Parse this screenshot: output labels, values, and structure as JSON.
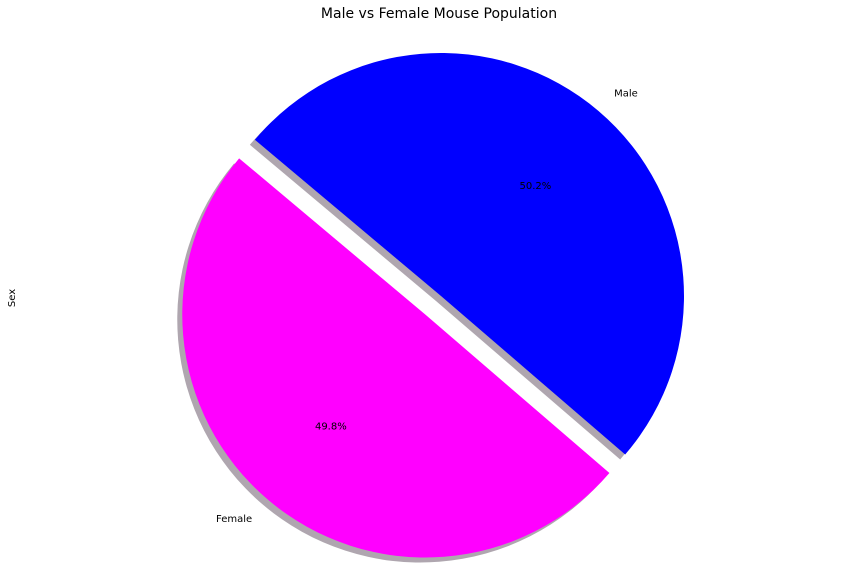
{
  "chart_data": {
    "type": "pie",
    "title": "Male vs Female Mouse Population",
    "ylabel": "Sex",
    "labels": [
      "Female",
      "Male"
    ],
    "values": [
      49.8,
      50.2
    ],
    "percent_labels": [
      "49.8%",
      "50.2%"
    ],
    "colors": [
      "#ff00ff",
      "#0000ff"
    ],
    "explode": [
      0.1,
      0
    ],
    "shadow": true,
    "start_angle": 140
  }
}
